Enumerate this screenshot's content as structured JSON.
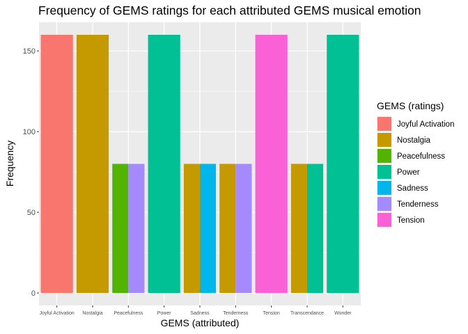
{
  "chart_data": {
    "type": "bar",
    "stacked": true,
    "title": "Frequency of GEMS ratings for each attributed GEMS musical emotion",
    "xlabel": "GEMS (attributed)",
    "ylabel": "Frequency",
    "ylim": [
      0,
      168
    ],
    "yticks": [
      0,
      50,
      100,
      150
    ],
    "grid": true,
    "legend_position": "right",
    "legend_title": "GEMS (ratings)",
    "categories": [
      "Joyful Activation",
      "Nostalgia",
      "Peacefulness",
      "Power",
      "Sadness",
      "Tenderness",
      "Tension",
      "Transcendance",
      "Wonder"
    ],
    "series": [
      {
        "name": "Joyful Activation",
        "color": "#F8766D",
        "values": [
          160,
          0,
          0,
          0,
          0,
          0,
          0,
          0,
          0
        ]
      },
      {
        "name": "Nostalgia",
        "color": "#C49A00",
        "values": [
          0,
          160,
          0,
          0,
          80,
          80,
          0,
          80,
          0
        ]
      },
      {
        "name": "Peacefulness",
        "color": "#53B400",
        "values": [
          0,
          0,
          80,
          0,
          0,
          0,
          0,
          0,
          0
        ]
      },
      {
        "name": "Power",
        "color": "#00C094",
        "values": [
          0,
          0,
          0,
          160,
          0,
          0,
          0,
          80,
          160
        ]
      },
      {
        "name": "Sadness",
        "color": "#00B6EB",
        "values": [
          0,
          0,
          0,
          0,
          80,
          0,
          0,
          0,
          0
        ]
      },
      {
        "name": "Tenderness",
        "color": "#A58AFF",
        "values": [
          0,
          0,
          80,
          0,
          0,
          80,
          0,
          0,
          0
        ]
      },
      {
        "name": "Tension",
        "color": "#FB61D7",
        "values": [
          0,
          0,
          0,
          0,
          0,
          0,
          160,
          0,
          0
        ]
      }
    ]
  }
}
